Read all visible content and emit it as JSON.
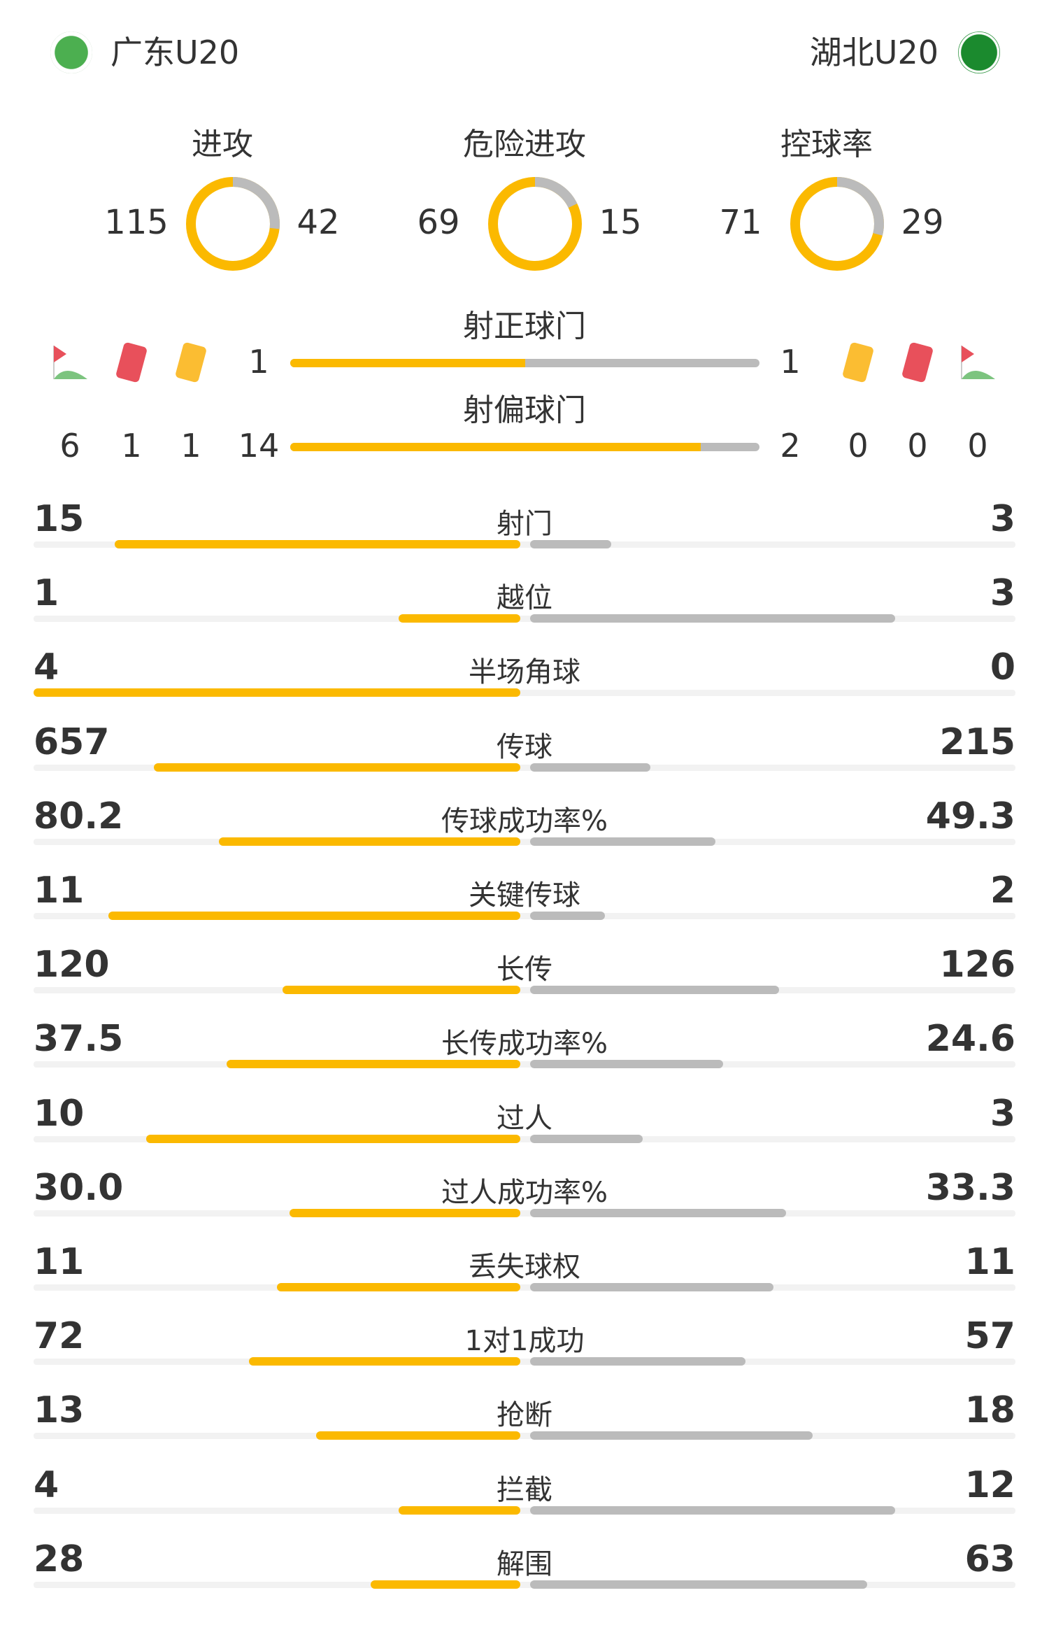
{
  "home": {
    "name": "广东U20"
  },
  "away": {
    "name": "湖北U20"
  },
  "colors": {
    "home": "#fbb900",
    "away": "#bbbbbb",
    "track": "#f2f2f2"
  },
  "circles": [
    {
      "label": "进攻",
      "home": 115,
      "away": 42
    },
    {
      "label": "危险进攻",
      "home": 69,
      "away": 15
    },
    {
      "label": "控球率",
      "home": 71,
      "away": 29
    }
  ],
  "shots": [
    {
      "label": "射正球门",
      "home": 1,
      "away": 1
    },
    {
      "label": "射偏球门",
      "home": 14,
      "away": 2
    }
  ],
  "icons": [
    "corner-flag-icon",
    "red-card-icon",
    "yellow-card-icon"
  ],
  "home_counts": {
    "corners": 6,
    "red": 1,
    "yellow": 1
  },
  "away_counts": {
    "corners": 0,
    "red": 0,
    "yellow": 0
  },
  "stats": [
    {
      "label": "射门",
      "home": "15",
      "away": "3"
    },
    {
      "label": "越位",
      "home": "1",
      "away": "3"
    },
    {
      "label": "半场角球",
      "home": "4",
      "away": "0"
    },
    {
      "label": "传球",
      "home": "657",
      "away": "215"
    },
    {
      "label": "传球成功率%",
      "home": "80.2",
      "away": "49.3"
    },
    {
      "label": "关键传球",
      "home": "11",
      "away": "2"
    },
    {
      "label": "长传",
      "home": "120",
      "away": "126"
    },
    {
      "label": "长传成功率%",
      "home": "37.5",
      "away": "24.6"
    },
    {
      "label": "过人",
      "home": "10",
      "away": "3"
    },
    {
      "label": "过人成功率%",
      "home": "30.0",
      "away": "33.3"
    },
    {
      "label": "丢失球权",
      "home": "11",
      "away": "11"
    },
    {
      "label": "1对1成功",
      "home": "72",
      "away": "57"
    },
    {
      "label": "抢断",
      "home": "13",
      "away": "18"
    },
    {
      "label": "拦截",
      "home": "4",
      "away": "12"
    },
    {
      "label": "解围",
      "home": "28",
      "away": "63"
    }
  ]
}
